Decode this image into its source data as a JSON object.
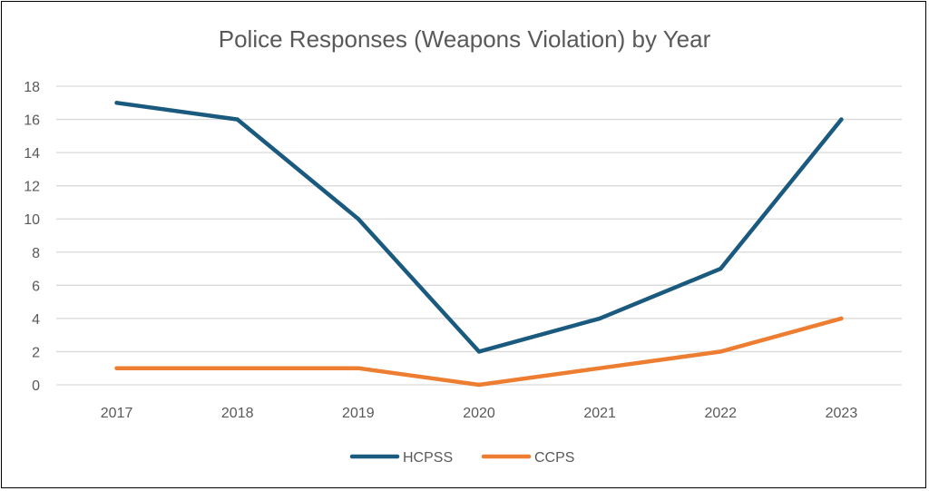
{
  "chart_data": {
    "type": "line",
    "title": "Police Responses (Weapons Violation) by Year",
    "xlabel": "",
    "ylabel": "",
    "categories": [
      "2017",
      "2018",
      "2019",
      "2020",
      "2021",
      "2022",
      "2023"
    ],
    "ylim": [
      0,
      18
    ],
    "yticks": [
      "0",
      "2",
      "4",
      "6",
      "8",
      "10",
      "12",
      "14",
      "16",
      "18"
    ],
    "grid": true,
    "legend": "bottom",
    "series": [
      {
        "name": "HCPSS",
        "color": "#1b5a7f",
        "values": [
          17,
          16,
          10,
          2,
          4,
          7,
          16
        ]
      },
      {
        "name": "CCPS",
        "color": "#ed7d31",
        "values": [
          1,
          1,
          1,
          0,
          1,
          2,
          4
        ]
      }
    ]
  }
}
